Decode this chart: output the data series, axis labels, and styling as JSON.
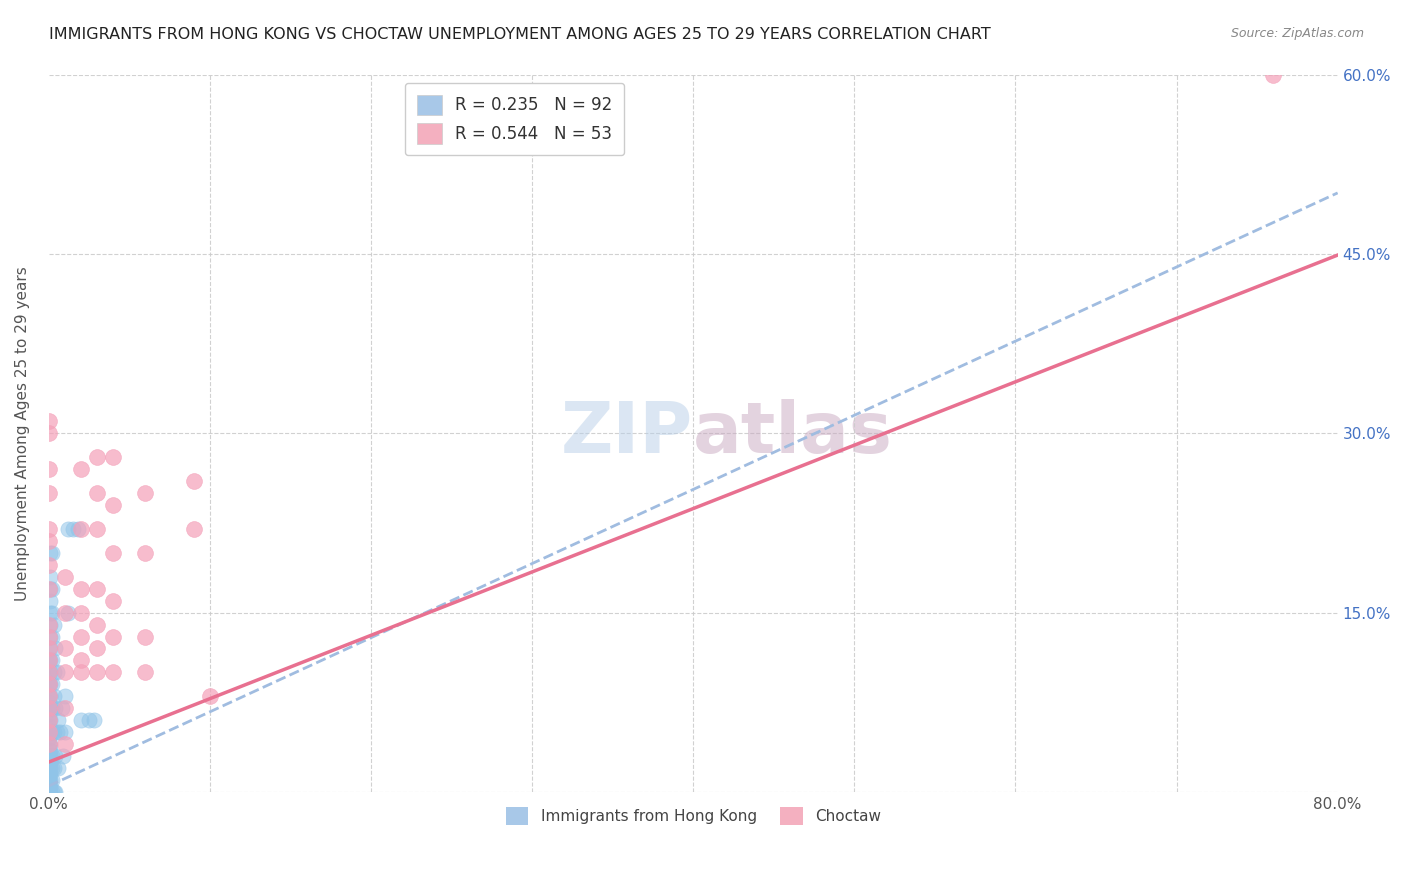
{
  "title": "IMMIGRANTS FROM HONG KONG VS CHOCTAW UNEMPLOYMENT AMONG AGES 25 TO 29 YEARS CORRELATION CHART",
  "source": "Source: ZipAtlas.com",
  "ylabel": "Unemployment Among Ages 25 to 29 years",
  "xlim": [
    0,
    0.8
  ],
  "ylim": [
    0,
    0.6
  ],
  "xticks": [
    0.0,
    0.1,
    0.2,
    0.3,
    0.4,
    0.5,
    0.6,
    0.7,
    0.8
  ],
  "xticklabels": [
    "0.0%",
    "",
    "",
    "",
    "",
    "",
    "",
    "",
    "80.0%"
  ],
  "yticks": [
    0.0,
    0.15,
    0.3,
    0.45,
    0.6
  ],
  "yticklabels_right": [
    "",
    "15.0%",
    "30.0%",
    "45.0%",
    "60.0%"
  ],
  "watermark": "ZIPatlas",
  "blue_scatter_color": "#90c4e8",
  "pink_scatter_color": "#f4a0b8",
  "blue_line_color": "#a0bce0",
  "pink_line_color": "#e87090",
  "hk_trendline_intercept": 0.005,
  "hk_trendline_slope": 0.62,
  "choctaw_trendline_intercept": 0.025,
  "choctaw_trendline_slope": 0.53,
  "hk_points": [
    [
      0.0,
      0.0
    ],
    [
      0.0,
      0.0
    ],
    [
      0.0,
      0.0
    ],
    [
      0.0,
      0.0
    ],
    [
      0.0,
      0.0
    ],
    [
      0.0,
      0.0
    ],
    [
      0.0,
      0.0
    ],
    [
      0.0,
      0.0
    ],
    [
      0.0,
      0.0
    ],
    [
      0.0,
      0.0
    ],
    [
      0.0,
      0.0
    ],
    [
      0.0,
      0.0
    ],
    [
      0.0,
      0.005
    ],
    [
      0.0,
      0.01
    ],
    [
      0.0,
      0.012
    ],
    [
      0.0,
      0.015
    ],
    [
      0.0,
      0.02
    ],
    [
      0.0,
      0.025
    ],
    [
      0.0,
      0.03
    ],
    [
      0.0,
      0.035
    ],
    [
      0.0,
      0.04
    ],
    [
      0.0,
      0.045
    ],
    [
      0.0,
      0.05
    ],
    [
      0.0,
      0.055
    ],
    [
      0.0,
      0.06
    ],
    [
      0.0,
      0.065
    ],
    [
      0.0,
      0.07
    ],
    [
      0.0,
      0.075
    ],
    [
      0.0,
      0.08
    ],
    [
      0.0,
      0.09
    ],
    [
      0.0,
      0.1
    ],
    [
      0.0,
      0.11
    ],
    [
      0.001,
      0.0
    ],
    [
      0.001,
      0.005
    ],
    [
      0.001,
      0.01
    ],
    [
      0.001,
      0.015
    ],
    [
      0.001,
      0.02
    ],
    [
      0.001,
      0.025
    ],
    [
      0.001,
      0.03
    ],
    [
      0.001,
      0.035
    ],
    [
      0.001,
      0.04
    ],
    [
      0.001,
      0.05
    ],
    [
      0.001,
      0.06
    ],
    [
      0.001,
      0.07
    ],
    [
      0.001,
      0.08
    ],
    [
      0.001,
      0.09
    ],
    [
      0.001,
      0.1
    ],
    [
      0.001,
      0.11
    ],
    [
      0.001,
      0.12
    ],
    [
      0.001,
      0.13
    ],
    [
      0.001,
      0.14
    ],
    [
      0.001,
      0.15
    ],
    [
      0.001,
      0.16
    ],
    [
      0.001,
      0.17
    ],
    [
      0.001,
      0.18
    ],
    [
      0.001,
      0.2
    ],
    [
      0.002,
      0.0
    ],
    [
      0.002,
      0.01
    ],
    [
      0.002,
      0.02
    ],
    [
      0.002,
      0.03
    ],
    [
      0.002,
      0.05
    ],
    [
      0.002,
      0.07
    ],
    [
      0.002,
      0.09
    ],
    [
      0.002,
      0.11
    ],
    [
      0.002,
      0.13
    ],
    [
      0.002,
      0.15
    ],
    [
      0.002,
      0.17
    ],
    [
      0.002,
      0.2
    ],
    [
      0.003,
      0.0
    ],
    [
      0.003,
      0.02
    ],
    [
      0.003,
      0.05
    ],
    [
      0.003,
      0.08
    ],
    [
      0.003,
      0.1
    ],
    [
      0.003,
      0.14
    ],
    [
      0.004,
      0.0
    ],
    [
      0.004,
      0.03
    ],
    [
      0.004,
      0.07
    ],
    [
      0.004,
      0.12
    ],
    [
      0.005,
      0.05
    ],
    [
      0.005,
      0.1
    ],
    [
      0.006,
      0.02
    ],
    [
      0.006,
      0.06
    ],
    [
      0.007,
      0.05
    ],
    [
      0.008,
      0.07
    ],
    [
      0.009,
      0.03
    ],
    [
      0.01,
      0.05
    ],
    [
      0.01,
      0.08
    ],
    [
      0.012,
      0.15
    ],
    [
      0.012,
      0.22
    ],
    [
      0.015,
      0.22
    ],
    [
      0.018,
      0.22
    ],
    [
      0.02,
      0.06
    ],
    [
      0.025,
      0.06
    ],
    [
      0.028,
      0.06
    ]
  ],
  "choctaw_points": [
    [
      0.0,
      0.04
    ],
    [
      0.0,
      0.05
    ],
    [
      0.0,
      0.06
    ],
    [
      0.0,
      0.07
    ],
    [
      0.0,
      0.08
    ],
    [
      0.0,
      0.09
    ],
    [
      0.0,
      0.1
    ],
    [
      0.0,
      0.11
    ],
    [
      0.0,
      0.12
    ],
    [
      0.0,
      0.13
    ],
    [
      0.0,
      0.14
    ],
    [
      0.0,
      0.17
    ],
    [
      0.0,
      0.19
    ],
    [
      0.0,
      0.21
    ],
    [
      0.0,
      0.22
    ],
    [
      0.0,
      0.25
    ],
    [
      0.0,
      0.27
    ],
    [
      0.0,
      0.3
    ],
    [
      0.0,
      0.31
    ],
    [
      0.01,
      0.04
    ],
    [
      0.01,
      0.07
    ],
    [
      0.01,
      0.1
    ],
    [
      0.01,
      0.12
    ],
    [
      0.01,
      0.15
    ],
    [
      0.01,
      0.18
    ],
    [
      0.02,
      0.1
    ],
    [
      0.02,
      0.11
    ],
    [
      0.02,
      0.13
    ],
    [
      0.02,
      0.15
    ],
    [
      0.02,
      0.17
    ],
    [
      0.02,
      0.22
    ],
    [
      0.02,
      0.27
    ],
    [
      0.03,
      0.1
    ],
    [
      0.03,
      0.12
    ],
    [
      0.03,
      0.14
    ],
    [
      0.03,
      0.17
    ],
    [
      0.03,
      0.22
    ],
    [
      0.03,
      0.25
    ],
    [
      0.03,
      0.28
    ],
    [
      0.04,
      0.1
    ],
    [
      0.04,
      0.13
    ],
    [
      0.04,
      0.16
    ],
    [
      0.04,
      0.2
    ],
    [
      0.04,
      0.24
    ],
    [
      0.04,
      0.28
    ],
    [
      0.06,
      0.1
    ],
    [
      0.06,
      0.13
    ],
    [
      0.06,
      0.2
    ],
    [
      0.06,
      0.25
    ],
    [
      0.09,
      0.22
    ],
    [
      0.09,
      0.26
    ],
    [
      0.1,
      0.08
    ],
    [
      0.76,
      0.6
    ]
  ]
}
